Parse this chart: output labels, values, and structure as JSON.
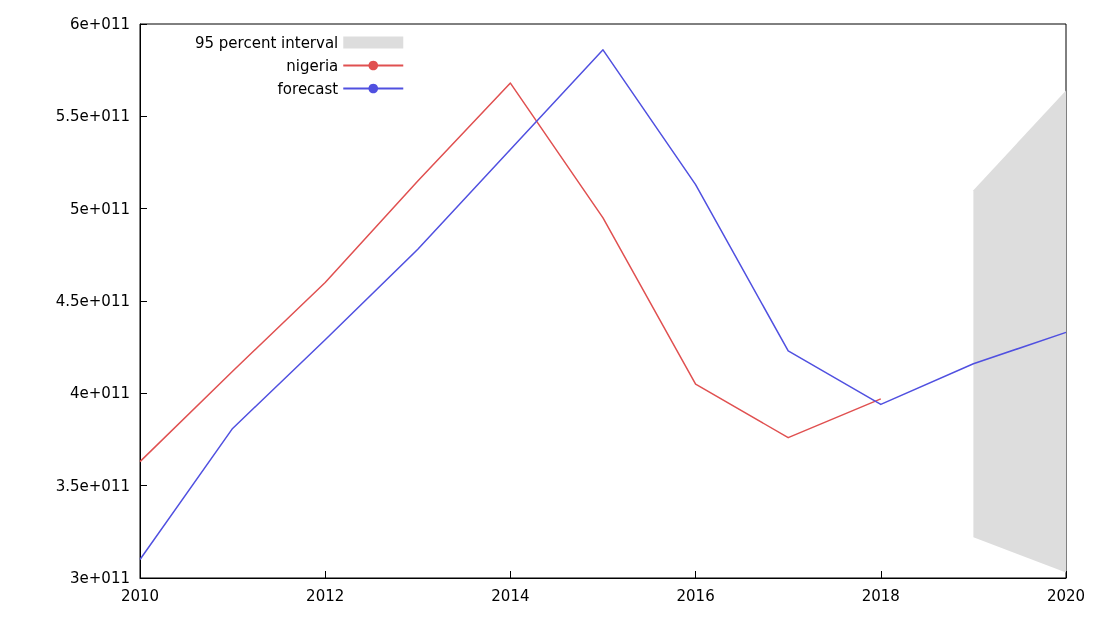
{
  "chart_data": {
    "type": "line",
    "x": [
      2010,
      2011,
      2012,
      2013,
      2014,
      2015,
      2016,
      2017,
      2018,
      2019,
      2020
    ],
    "series": [
      {
        "name": "95 percent interval",
        "type": "area",
        "color": "#dddddd",
        "x": [
          2019,
          2020
        ],
        "values": [
          null,
          null
        ],
        "lower": [
          322000000000.0,
          303000000000.0
        ],
        "upper": [
          510000000000.0,
          564000000000.0
        ]
      },
      {
        "name": "nigeria",
        "color": "#e05050",
        "x": [
          2010,
          2011,
          2012,
          2013,
          2014,
          2015,
          2016,
          2017,
          2018
        ],
        "values": [
          363000000000.0,
          412000000000.0,
          460000000000.0,
          515000000000.0,
          568000000000.0,
          495000000000.0,
          405000000000.0,
          376000000000.0,
          397000000000.0
        ]
      },
      {
        "name": "forecast",
        "color": "#5050e0",
        "values": [
          310000000000.0,
          381000000000.0,
          429000000000.0,
          478000000000.0,
          532000000000.0,
          586000000000.0,
          513000000000.0,
          423000000000.0,
          394000000000.0,
          416000000000.0,
          433000000000.0
        ]
      }
    ],
    "xlim": [
      2010,
      2020
    ],
    "xticks": [
      2010,
      2012,
      2014,
      2016,
      2018,
      2020
    ],
    "ylim": [
      300000000000.0,
      600000000000.0
    ],
    "yticks": [
      {
        "value": 300000000000.0,
        "label": "3e+011"
      },
      {
        "value": 350000000000.0,
        "label": "3.5e+011"
      },
      {
        "value": 400000000000.0,
        "label": "4e+011"
      },
      {
        "value": 450000000000.0,
        "label": "4.5e+011"
      },
      {
        "value": 500000000000.0,
        "label": "5e+011"
      },
      {
        "value": 550000000000.0,
        "label": "5.5e+011"
      },
      {
        "value": 600000000000.0,
        "label": "6e+011"
      }
    ],
    "legend": "top left",
    "grid": false,
    "marker": "none",
    "line_style": "solid"
  }
}
